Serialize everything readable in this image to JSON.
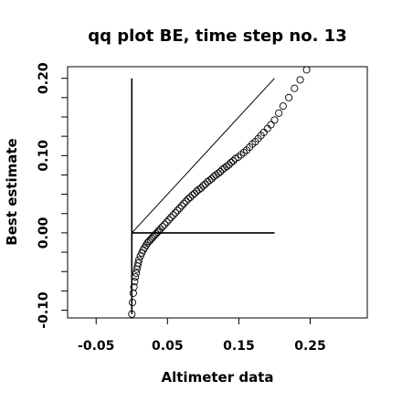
{
  "chart_data": {
    "type": "scatter",
    "title": "qq plot BE, time step no. 13",
    "xlabel": "Altimeter data",
    "ylabel": "Best estimate",
    "xlim": [
      -0.09,
      0.33
    ],
    "ylim": [
      -0.11,
      0.215
    ],
    "x_ticks": [
      -0.05,
      0.05,
      0.15,
      0.25
    ],
    "x_tick_labels": [
      "-0.05",
      "0.05",
      "0.15",
      "0.25"
    ],
    "y_ticks": [
      -0.1,
      0.0,
      0.1,
      0.2
    ],
    "y_tick_labels": [
      "-0.10",
      "0.00",
      "0.10",
      "0.20"
    ],
    "grid": false,
    "marker": "open-circle",
    "reference_lines": [
      {
        "kind": "identity",
        "x": [
          0.0,
          0.2
        ],
        "y": [
          0.0,
          0.2
        ]
      },
      {
        "kind": "vertical",
        "x": [
          0.0,
          0.0
        ],
        "y": [
          -0.105,
          0.2
        ]
      },
      {
        "kind": "horizontal",
        "x": [
          0.0,
          0.2
        ],
        "y": [
          0.0,
          0.0
        ]
      }
    ],
    "series": [
      {
        "x": [
          0.0,
          0.001,
          0.002,
          0.003,
          0.004,
          0.005,
          0.006,
          0.007,
          0.008,
          0.009,
          0.01,
          0.012,
          0.014,
          0.016,
          0.018,
          0.02,
          0.022,
          0.024,
          0.026,
          0.028,
          0.03,
          0.032,
          0.034,
          0.036,
          0.038,
          0.04,
          0.043,
          0.046,
          0.049,
          0.052,
          0.055,
          0.058,
          0.061,
          0.064,
          0.067,
          0.07,
          0.073,
          0.076,
          0.079,
          0.082,
          0.085,
          0.088,
          0.091,
          0.094,
          0.097,
          0.1,
          0.103,
          0.106,
          0.109,
          0.112,
          0.115,
          0.118,
          0.121,
          0.124,
          0.127,
          0.13,
          0.133,
          0.136,
          0.139,
          0.142,
          0.145,
          0.149,
          0.153,
          0.157,
          0.161,
          0.165,
          0.169,
          0.173,
          0.177,
          0.181,
          0.185,
          0.19,
          0.195,
          0.2,
          0.206,
          0.212,
          0.22,
          0.228,
          0.236,
          0.245
        ],
        "y": [
          -0.105,
          -0.09,
          -0.078,
          -0.07,
          -0.063,
          -0.057,
          -0.052,
          -0.047,
          -0.043,
          -0.039,
          -0.035,
          -0.03,
          -0.026,
          -0.022,
          -0.019,
          -0.016,
          -0.013,
          -0.011,
          -0.009,
          -0.007,
          -0.005,
          -0.003,
          -0.001,
          0.001,
          0.003,
          0.005,
          0.008,
          0.011,
          0.014,
          0.017,
          0.02,
          0.023,
          0.026,
          0.029,
          0.032,
          0.035,
          0.038,
          0.041,
          0.044,
          0.046,
          0.049,
          0.051,
          0.054,
          0.056,
          0.058,
          0.061,
          0.063,
          0.066,
          0.068,
          0.07,
          0.073,
          0.075,
          0.077,
          0.079,
          0.082,
          0.084,
          0.086,
          0.088,
          0.091,
          0.093,
          0.096,
          0.098,
          0.101,
          0.104,
          0.107,
          0.111,
          0.115,
          0.118,
          0.122,
          0.126,
          0.13,
          0.135,
          0.14,
          0.146,
          0.155,
          0.164,
          0.175,
          0.187,
          0.198,
          0.211
        ]
      }
    ]
  }
}
